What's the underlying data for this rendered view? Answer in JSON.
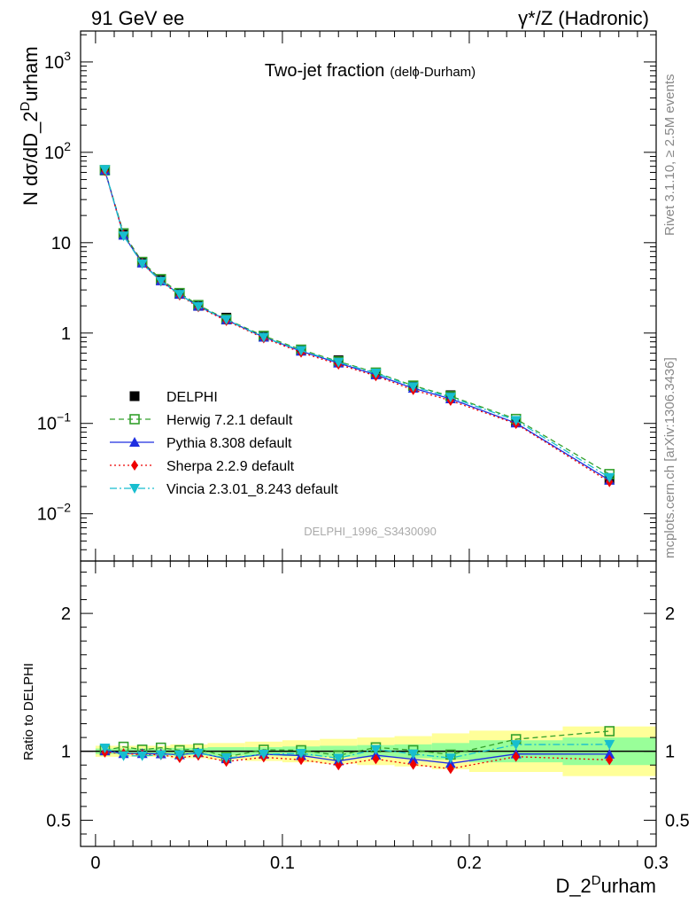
{
  "header": {
    "left": "91 GeV ee",
    "right": "γ*/Z (Hadronic)"
  },
  "side_labels": {
    "rivet": "Rivet 3.1.10, ≥ 2.5M events",
    "mcplots": "mcplots.cern.ch [arXiv:1306.3436]"
  },
  "chart_data": {
    "type": "line",
    "title_main": "Two-jet fraction",
    "title_sub": "(delϕ-Durham)",
    "watermark": "DELPHI_1996_S3430090",
    "xlabel_base": "D_2",
    "xlabel_sup": "D",
    "xlabel_end": "urham",
    "ylabel_base": "N dσ/dD_2",
    "ylabel_sup": "D",
    "ylabel_end": "urham",
    "ratio_ylabel": "Ratio to DELPHI",
    "xlim": [
      -0.008,
      0.3
    ],
    "ylim_main": [
      0.003,
      2200
    ],
    "ylim_ratio": [
      0.31,
      2.38
    ],
    "yscale_main": "log",
    "x_ticks": [
      "0",
      "0.1",
      "0.2",
      "0.3"
    ],
    "main_ticks": [
      {
        "base": "10",
        "exp": "3"
      },
      {
        "base": "10",
        "exp": "2"
      },
      {
        "base": "10",
        "exp": ""
      },
      {
        "base": "1",
        "exp": ""
      },
      {
        "base": "10",
        "exp": "−1"
      },
      {
        "base": "10",
        "exp": "−2"
      }
    ],
    "ratio_ticks": [
      "2",
      "1",
      "0.5"
    ],
    "x": [
      0.005,
      0.015,
      0.025,
      0.035,
      0.045,
      0.055,
      0.07,
      0.09,
      0.11,
      0.13,
      0.15,
      0.17,
      0.19,
      0.225,
      0.275
    ],
    "x_edges": [
      0,
      0.01,
      0.02,
      0.03,
      0.04,
      0.05,
      0.06,
      0.08,
      0.1,
      0.12,
      0.14,
      0.16,
      0.18,
      0.2,
      0.25,
      0.3
    ],
    "band_yellow": [
      0.04,
      0.04,
      0.04,
      0.04,
      0.05,
      0.05,
      0.06,
      0.07,
      0.08,
      0.09,
      0.1,
      0.11,
      0.13,
      0.15,
      0.18
    ],
    "band_green": [
      0.02,
      0.02,
      0.02,
      0.02,
      0.025,
      0.025,
      0.03,
      0.03,
      0.035,
      0.04,
      0.045,
      0.05,
      0.06,
      0.08,
      0.1
    ],
    "legend_position": "center-left",
    "series": [
      {
        "name": "DELPHI",
        "color": "#000000",
        "marker": "square-filled",
        "line": "none",
        "values": [
          63,
          12.3,
          6.05,
          3.85,
          2.75,
          2.0,
          1.48,
          0.92,
          0.65,
          0.5,
          0.355,
          0.26,
          0.205,
          0.103,
          0.024
        ]
      },
      {
        "name": "Herwig 7.2.1 default",
        "color": "#33a02c",
        "marker": "square-open",
        "line": "dashed",
        "values": [
          63.5,
          12.7,
          6.12,
          3.95,
          2.77,
          2.04,
          1.42,
          0.93,
          0.655,
          0.485,
          0.365,
          0.262,
          0.2,
          0.112,
          0.0275
        ]
      },
      {
        "name": "Pythia 8.308 default",
        "color": "#1f2fe0",
        "marker": "triangle-up",
        "line": "solid",
        "values": [
          63.2,
          12.1,
          5.95,
          3.78,
          2.68,
          1.98,
          1.4,
          0.9,
          0.63,
          0.465,
          0.345,
          0.245,
          0.187,
          0.101,
          0.0235
        ]
      },
      {
        "name": "Sherpa 2.2.9 default",
        "color": "#ee0000",
        "marker": "diamond",
        "line": "dotted",
        "values": [
          62.5,
          12.1,
          5.9,
          3.75,
          2.62,
          1.94,
          1.37,
          0.88,
          0.61,
          0.45,
          0.335,
          0.235,
          0.179,
          0.099,
          0.0225
        ]
      },
      {
        "name": "Vincia 2.3.01_8.243 default",
        "color": "#17becf",
        "marker": "triangle-down",
        "line": "dashdot",
        "values": [
          64.5,
          11.9,
          5.85,
          3.75,
          2.68,
          1.97,
          1.41,
          0.9,
          0.64,
          0.475,
          0.36,
          0.255,
          0.195,
          0.108,
          0.0252
        ]
      }
    ]
  }
}
